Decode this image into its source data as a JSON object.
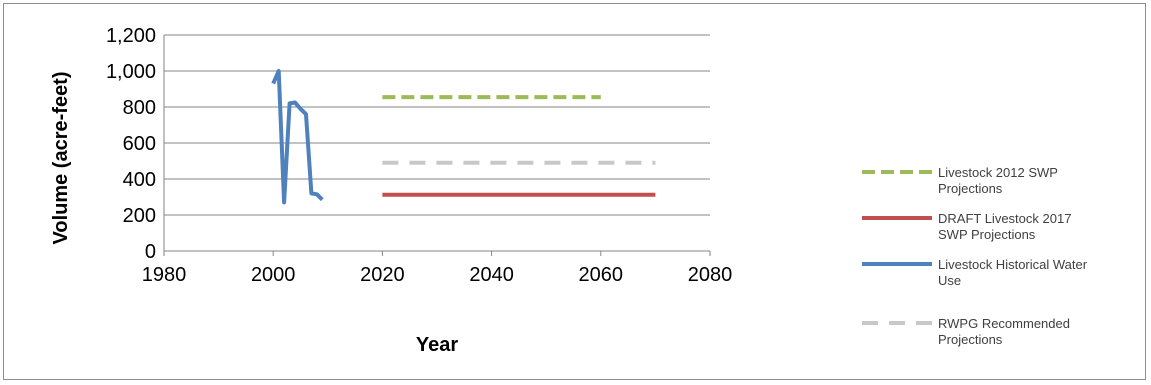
{
  "chart_data": {
    "type": "line",
    "title": "",
    "xlabel": "Year",
    "ylabel": "Volume (acre-feet)",
    "xlim": [
      1980,
      2080
    ],
    "ylim": [
      0,
      1200
    ],
    "x_ticks": [
      {
        "value": 1980,
        "label": "1980"
      },
      {
        "value": 2000,
        "label": "2000"
      },
      {
        "value": 2020,
        "label": "2020"
      },
      {
        "value": 2040,
        "label": "2040"
      },
      {
        "value": 2060,
        "label": "2060"
      },
      {
        "value": 2080,
        "label": "2080"
      }
    ],
    "y_ticks": [
      {
        "value": 0,
        "label": "0"
      },
      {
        "value": 200,
        "label": "200"
      },
      {
        "value": 400,
        "label": "400"
      },
      {
        "value": 600,
        "label": "600"
      },
      {
        "value": 800,
        "label": "800"
      },
      {
        "value": 1000,
        "label": "1,000"
      },
      {
        "value": 1200,
        "label": "1,200"
      }
    ],
    "grid": "horizontal",
    "legend_position": "right",
    "series": [
      {
        "name": "Livestock 2012 SWP Projections",
        "legend_lines": [
          "Livestock 2012 SWP",
          "Projections"
        ],
        "color": "#9bbb59",
        "style": "dashed",
        "x": [
          2020,
          2030,
          2040,
          2050,
          2060
        ],
        "y": [
          855,
          855,
          855,
          855,
          855
        ]
      },
      {
        "name": "DRAFT Livestock 2017 SWP Projections",
        "legend_lines": [
          "DRAFT Livestock 2017",
          "SWP Projections"
        ],
        "color": "#c0504d",
        "style": "solid",
        "x": [
          2020,
          2030,
          2040,
          2050,
          2060,
          2070
        ],
        "y": [
          313,
          313,
          313,
          313,
          313,
          313
        ]
      },
      {
        "name": "Livestock Historical Water Use",
        "legend_lines": [
          "Livestock Historical Water",
          "Use"
        ],
        "color": "#4f81bd",
        "style": "solid",
        "x": [
          2000,
          2001,
          2002,
          2003,
          2004,
          2005,
          2006,
          2007,
          2008,
          2009
        ],
        "y": [
          930,
          1000,
          270,
          820,
          825,
          790,
          760,
          320,
          315,
          285
        ]
      },
      {
        "name": "RWPG Recommended Projections",
        "legend_lines": [
          "RWPG Recommended",
          "Projections"
        ],
        "color": "#c8c8c8",
        "style": "dashed",
        "x": [
          2020,
          2030,
          2040,
          2050,
          2060,
          2070
        ],
        "y": [
          490,
          490,
          490,
          490,
          490,
          490
        ]
      }
    ]
  }
}
